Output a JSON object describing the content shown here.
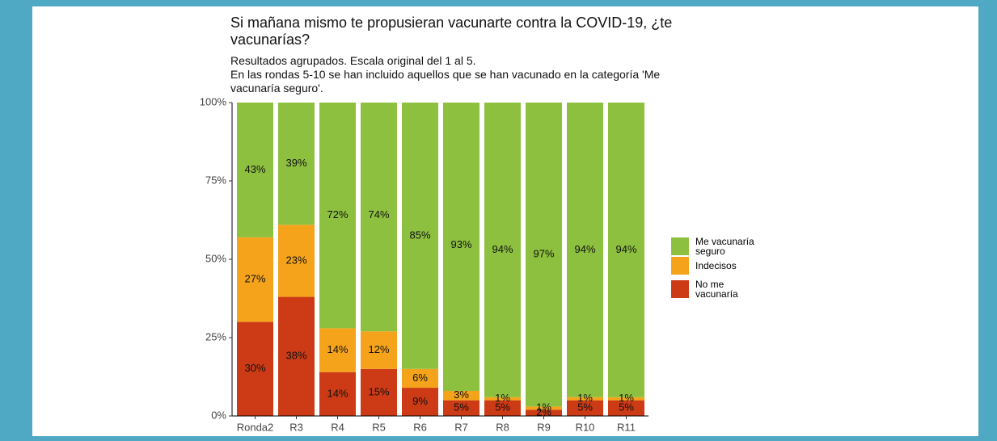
{
  "chart_data": {
    "type": "stacked_bar",
    "title": "Si mañana mismo te propusieran vacunarte contra la COVID-19, ¿te vacunarías?",
    "subtitle": "Resultados agrupados. Escala original del 1 al 5.\nEn las rondas 5-10  se han incluido aquellos que se han vacunado en la categoría 'Me vacunaría seguro'.",
    "categories": [
      "Ronda2",
      "R3",
      "R4",
      "R5",
      "R6",
      "R7",
      "R8",
      "R9",
      "R10",
      "R11"
    ],
    "series": [
      {
        "name": "No me vacunaría",
        "color": "#cc3a16",
        "values": [
          30,
          38,
          14,
          15,
          9,
          5,
          5,
          2,
          5,
          5
        ],
        "value_labels": [
          "30%",
          "38%",
          "14%",
          "15%",
          "9%",
          "5%",
          "5%",
          "2%",
          "5%",
          "5%"
        ]
      },
      {
        "name": "Indecisos",
        "color": "#f5a31b",
        "values": [
          27,
          23,
          14,
          12,
          6,
          3,
          1,
          1,
          1,
          1
        ],
        "value_labels": [
          "27%",
          "23%",
          "14%",
          "12%",
          "6%",
          "3%",
          "1%",
          "1%",
          "1%",
          "1%"
        ]
      },
      {
        "name": "Me vacunaría seguro",
        "color": "#8dc03f",
        "values": [
          43,
          39,
          72,
          74,
          85,
          93,
          94,
          97,
          94,
          94
        ],
        "value_labels": [
          "43%",
          "39%",
          "72%",
          "74%",
          "85%",
          "93%",
          "94%",
          "97%",
          "94%",
          "94%"
        ]
      }
    ],
    "ylim": [
      0,
      100
    ],
    "yticks": [
      {
        "value": 0,
        "label": "0%"
      },
      {
        "value": 25,
        "label": "25%"
      },
      {
        "value": 50,
        "label": "50%"
      },
      {
        "value": 75,
        "label": "75%"
      },
      {
        "value": 100,
        "label": "100%"
      }
    ]
  }
}
